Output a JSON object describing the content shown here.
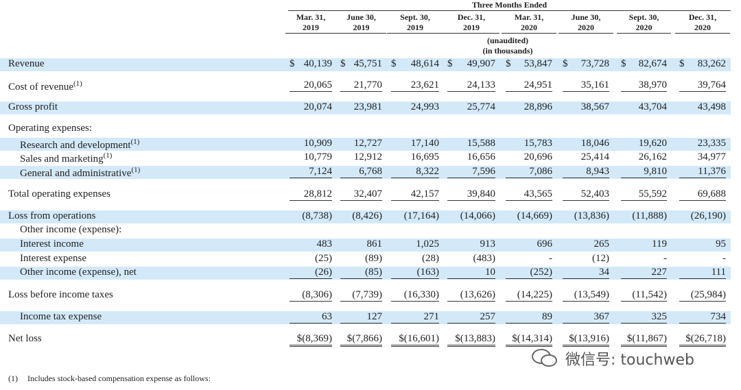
{
  "header": {
    "title": "Three Months Ended",
    "columns": [
      [
        "Mar. 31,",
        "2019"
      ],
      [
        "June 30,",
        "2019"
      ],
      [
        "Sept. 30,",
        "2019"
      ],
      [
        "Dec. 31,",
        "2019"
      ],
      [
        "Mar. 31,",
        "2020"
      ],
      [
        "June 30,",
        "2020"
      ],
      [
        "Sept. 30,",
        "2020"
      ],
      [
        "Dec. 31,",
        "2020"
      ]
    ],
    "notes": [
      "(unaudited)",
      "(in thousands)"
    ]
  },
  "rows": [
    {
      "label": "Revenue",
      "cells": [
        "$ 40,139",
        "$ 45,751",
        "$ 48,614",
        "$ 49,907",
        "$ 53,847",
        "$ 73,728",
        "$ 82,674",
        "$ 83,262"
      ]
    },
    {
      "label": "Cost of revenue",
      "note": "(1)",
      "cells": [
        "20,065",
        "21,770",
        "23,621",
        "24,133",
        "24,951",
        "35,161",
        "38,970",
        "39,764"
      ]
    },
    {
      "label": "Gross profit",
      "cells": [
        "20,074",
        "23,981",
        "24,993",
        "25,774",
        "28,896",
        "38,567",
        "43,704",
        "43,498"
      ]
    },
    {
      "label": "Operating expenses:"
    },
    {
      "label": "Research and development",
      "note": "(1)",
      "cells": [
        "10,909",
        "12,727",
        "17,140",
        "15,588",
        "15,783",
        "18,046",
        "19,620",
        "23,335"
      ]
    },
    {
      "label": "Sales and marketing",
      "note": "(1)",
      "cells": [
        "10,779",
        "12,912",
        "16,695",
        "16,656",
        "20,696",
        "25,414",
        "26,162",
        "34,977"
      ]
    },
    {
      "label": "General and administrative",
      "note": "(1)",
      "cells": [
        "7,124",
        "6,768",
        "8,322",
        "7,596",
        "7,086",
        "8,943",
        "9,810",
        "11,376"
      ]
    },
    {
      "label": "Total operating expenses",
      "cells": [
        "28,812",
        "32,407",
        "42,157",
        "39,840",
        "43,565",
        "52,403",
        "55,592",
        "69,688"
      ]
    },
    {
      "label": "Loss from operations",
      "cells": [
        "(8,738)",
        "(8,426)",
        "(17,164)",
        "(14,066)",
        "(14,669)",
        "(13,836)",
        "(11,888)",
        "(26,190)"
      ]
    },
    {
      "label": "Other income (expense):"
    },
    {
      "label": "Interest income",
      "cells": [
        "483",
        "861",
        "1,025",
        "913",
        "696",
        "265",
        "119",
        "95"
      ]
    },
    {
      "label": "Interest expense",
      "cells": [
        "(25)",
        "(89)",
        "(28)",
        "(483)",
        "-",
        "(12)",
        "-",
        "-"
      ]
    },
    {
      "label": "Other income (expense), net",
      "cells": [
        "(26)",
        "(85)",
        "(163)",
        "10",
        "(252)",
        "34",
        "227",
        "111"
      ]
    },
    {
      "label": "Loss before income taxes",
      "cells": [
        "(8,306)",
        "(7,739)",
        "(16,330)",
        "(13,626)",
        "(14,225)",
        "(13,549)",
        "(11,542)",
        "(25,984)"
      ]
    },
    {
      "label": "Income tax expense",
      "cells": [
        "63",
        "127",
        "271",
        "257",
        "89",
        "367",
        "325",
        "734"
      ]
    },
    {
      "label": "Net loss",
      "cells": [
        "$(8,369)",
        "$(7,866)",
        "$(16,601)",
        "$(13,883)",
        "$(14,314)",
        "$(13,916)",
        "$(11,867)",
        "$(26,718)"
      ]
    }
  ],
  "footnote": {
    "marker": "(1)",
    "text": "Includes stock-based compensation expense as follows:"
  },
  "watermark": "微信号: touchweb"
}
